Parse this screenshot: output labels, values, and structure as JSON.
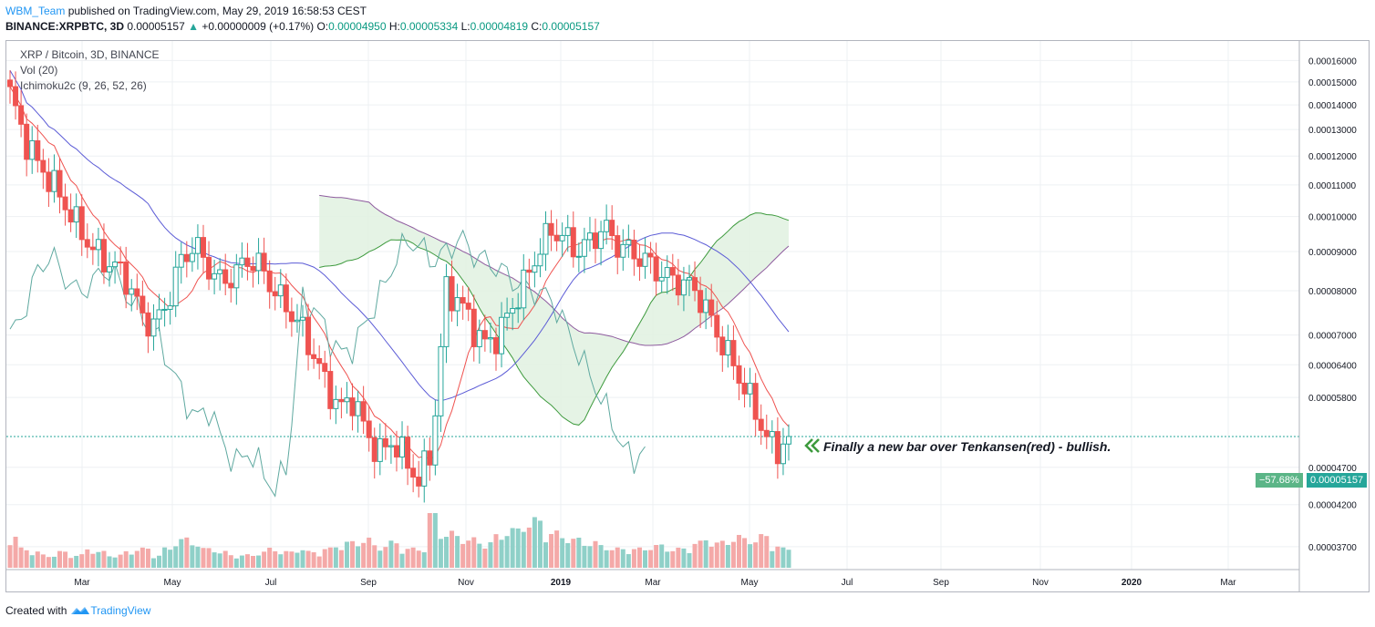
{
  "header": {
    "author": "WBM_Team",
    "published_text": "published on TradingView.com, May 29, 2019 16:58:53 CEST",
    "symbol": "BINANCE:XRPBTC, 3D",
    "price": "0.00005157",
    "change": "+0.00000009 (+0.17%)",
    "o_label": "O:",
    "o_value": "0.00004950",
    "h_label": "H:",
    "h_value": "0.00005334",
    "l_label": "L:",
    "l_value": "0.00004819",
    "c_label": "C:",
    "c_value": "0.00005157"
  },
  "legend": {
    "title": "XRP / Bitcoin, 3D, BINANCE",
    "vol": "Vol (20)",
    "ichimoku": "Ichimoku2c (9, 26, 52, 26)"
  },
  "annotation": {
    "text": "Finally a new bar over Tenkansen(red) - bullish."
  },
  "price_tag": {
    "change": "−57.68%",
    "price": "0.00005157"
  },
  "footer": {
    "created": "Created with",
    "brand": "TradingView"
  },
  "colors": {
    "up": "#26a69a",
    "down": "#ef5350",
    "tenkan": "#ef5350",
    "kijun": "#5b5bd6",
    "chikou": "#5fa9a0",
    "span_a": "#3d9a3d",
    "span_b": "#8e5b9e",
    "cloud": "#e0f1e0"
  },
  "chart_data": {
    "type": "candlestick",
    "y_axis": {
      "scale": "log",
      "range": [
        3.55e-05,
        0.000166
      ],
      "ticks": [
        "0.00016000",
        "0.00015000",
        "0.00014000",
        "0.00013000",
        "0.00012000",
        "0.00011000",
        "0.00010000",
        "0.00009000",
        "0.00008000",
        "0.00007000",
        "0.00006400",
        "0.00005800",
        "0.00005157",
        "0.00004700",
        "0.00004200",
        "0.00003700"
      ]
    },
    "x_axis": {
      "ticks": [
        "Mar",
        "May",
        "Jul",
        "Sep",
        "Nov",
        "2019",
        "Mar",
        "May",
        "Jul",
        "Sep",
        "Nov",
        "2020",
        "Mar"
      ],
      "range": [
        "2018-01",
        "2020-04"
      ]
    },
    "last_price": 5.157e-05,
    "candles_anchor_close": [
      0.000145,
      0.000128,
      0.000118,
      0.000112,
      0.000105,
      9.8e-05,
      9.2e-05,
      8.8e-05,
      8.6e-05,
      8.2e-05,
      7.4e-05,
      7.2e-05,
      7.8e-05,
      8.8e-05,
      9.2e-05,
      8.6e-05,
      8.2e-05,
      8.4e-05,
      8.8e-05,
      8.6e-05,
      8e-05,
      7.6e-05,
      7.2e-05,
      6.6e-05,
      6e-05,
      5.6e-05,
      5.8e-05,
      5.2e-05,
      4.9e-05,
      5.1e-05,
      4.8e-05,
      4.5e-05,
      5e-05,
      8e-05,
      7.8e-05,
      7.2e-05,
      6.8e-05,
      7e-05,
      7.6e-05,
      8.2e-05,
      9e-05,
      9.6e-05,
      9.4e-05,
      9e-05,
      9.3e-05,
      9.7e-05,
      9.2e-05,
      9e-05,
      8.8e-05,
      8.5e-05,
      8.3e-05,
      8.2e-05,
      8e-05,
      7.4e-05,
      6.8e-05,
      6.3e-05,
      5.8e-05,
      5.3e-05,
      4.9e-05,
      5.2e-05
    ],
    "volume_relative": [
      0.5,
      0.3,
      0.25,
      0.2,
      0.25,
      0.2,
      0.3,
      0.25,
      0.2,
      0.25,
      0.3,
      0.2,
      0.3,
      0.45,
      0.4,
      0.3,
      0.25,
      0.2,
      0.2,
      0.25,
      0.3,
      0.25,
      0.3,
      0.25,
      0.3,
      0.35,
      0.4,
      0.45,
      0.35,
      0.4,
      0.3,
      0.3,
      0.9,
      0.55,
      0.5,
      0.45,
      0.4,
      0.5,
      0.6,
      0.7,
      0.75,
      0.55,
      0.5,
      0.45,
      0.4,
      0.35,
      0.3,
      0.3,
      0.3,
      0.35,
      0.3,
      0.3,
      0.4,
      0.45,
      0.4,
      0.5,
      0.45,
      0.5,
      0.35,
      0.3
    ]
  }
}
